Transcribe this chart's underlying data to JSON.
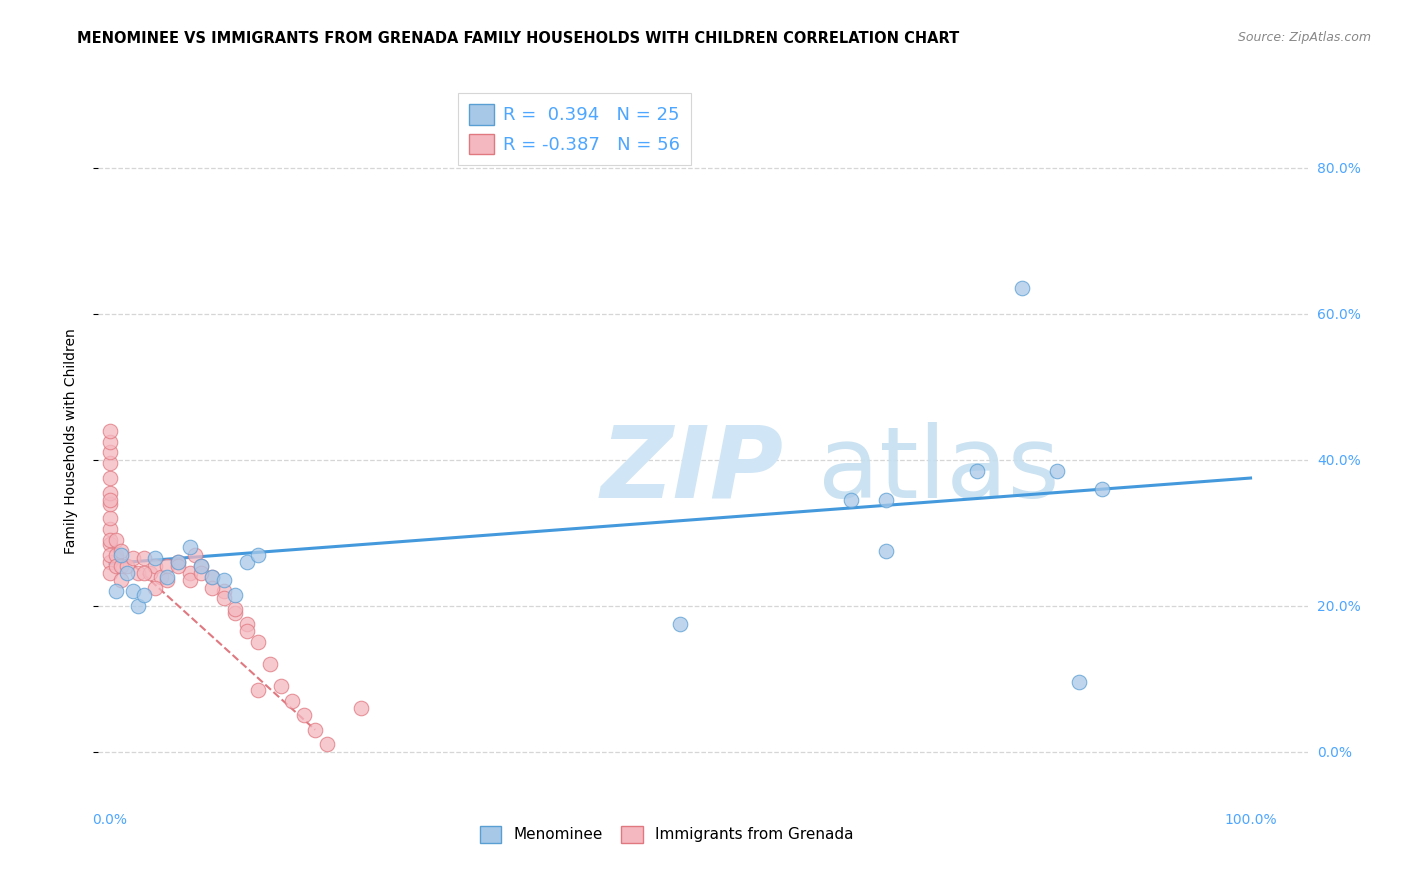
{
  "title": "MENOMINEE VS IMMIGRANTS FROM GRENADA FAMILY HOUSEHOLDS WITH CHILDREN CORRELATION CHART",
  "source": "Source: ZipAtlas.com",
  "tick_color": "#4da6ff",
  "ylabel": "Family Households with Children",
  "xlim": [
    -0.01,
    1.05
  ],
  "ylim": [
    -0.07,
    0.92
  ],
  "x_ticks": [
    0.0,
    0.1,
    0.2,
    0.3,
    0.4,
    0.5,
    0.6,
    0.7,
    0.8,
    0.9,
    1.0
  ],
  "y_ticks": [
    0.0,
    0.2,
    0.4,
    0.6,
    0.8
  ],
  "y_tick_labels": [
    "0.0%",
    "20.0%",
    "40.0%",
    "60.0%",
    "80.0%"
  ],
  "x_tick_labels": [
    "0.0%",
    "",
    "",
    "",
    "",
    "",
    "",
    "",
    "",
    "",
    "100.0%"
  ],
  "blue_fill": "#a8c8e8",
  "blue_edge": "#5a9fd4",
  "pink_fill": "#f4b8c0",
  "pink_edge": "#e07880",
  "blue_line_color": "#4499dd",
  "pink_line_color": "#dd8888",
  "legend_R_blue": "R =  0.394",
  "legend_N_blue": "N = 25",
  "legend_R_pink": "R = -0.387",
  "legend_N_pink": "N = 56",
  "blue_scatter_x": [
    0.005,
    0.01,
    0.015,
    0.02,
    0.025,
    0.03,
    0.04,
    0.05,
    0.06,
    0.07,
    0.08,
    0.09,
    0.1,
    0.11,
    0.12,
    0.13,
    0.5,
    0.65,
    0.68,
    0.68,
    0.76,
    0.8,
    0.83,
    0.85,
    0.87
  ],
  "blue_scatter_y": [
    0.22,
    0.27,
    0.245,
    0.22,
    0.2,
    0.215,
    0.265,
    0.24,
    0.26,
    0.28,
    0.255,
    0.24,
    0.235,
    0.215,
    0.26,
    0.27,
    0.175,
    0.345,
    0.345,
    0.275,
    0.385,
    0.635,
    0.385,
    0.095,
    0.36
  ],
  "pink_scatter_x": [
    0.0,
    0.0,
    0.0,
    0.0,
    0.0,
    0.0,
    0.0,
    0.0,
    0.0,
    0.0,
    0.0,
    0.0,
    0.0,
    0.0,
    0.0,
    0.005,
    0.005,
    0.005,
    0.01,
    0.01,
    0.01,
    0.015,
    0.02,
    0.025,
    0.03,
    0.035,
    0.04,
    0.045,
    0.05,
    0.06,
    0.07,
    0.075,
    0.08,
    0.09,
    0.1,
    0.11,
    0.12,
    0.13,
    0.14,
    0.15,
    0.16,
    0.17,
    0.18,
    0.19,
    0.22,
    0.03,
    0.04,
    0.05,
    0.06,
    0.07,
    0.08,
    0.09,
    0.1,
    0.11,
    0.12,
    0.13
  ],
  "pink_scatter_y": [
    0.26,
    0.285,
    0.305,
    0.32,
    0.34,
    0.355,
    0.375,
    0.395,
    0.41,
    0.425,
    0.44,
    0.345,
    0.29,
    0.27,
    0.245,
    0.27,
    0.29,
    0.255,
    0.275,
    0.255,
    0.235,
    0.255,
    0.265,
    0.245,
    0.265,
    0.245,
    0.255,
    0.24,
    0.255,
    0.26,
    0.245,
    0.27,
    0.255,
    0.24,
    0.22,
    0.19,
    0.175,
    0.15,
    0.12,
    0.09,
    0.07,
    0.05,
    0.03,
    0.01,
    0.06,
    0.245,
    0.225,
    0.235,
    0.255,
    0.235,
    0.245,
    0.225,
    0.21,
    0.195,
    0.165,
    0.085
  ],
  "blue_trend_x": [
    0.0,
    1.0
  ],
  "blue_trend_y": [
    0.258,
    0.375
  ],
  "pink_trend_x": [
    0.0,
    0.18
  ],
  "pink_trend_y": [
    0.285,
    0.03
  ],
  "grid_color": "#cccccc",
  "background_color": "#ffffff",
  "title_fontsize": 10.5,
  "axis_label_fontsize": 10,
  "tick_fontsize": 10,
  "legend_fontsize": 13
}
